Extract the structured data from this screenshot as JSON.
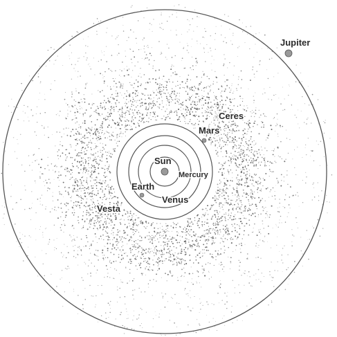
{
  "bodies": {
    "sun": "Sun",
    "mercury": "Mercury",
    "venus": "Venus",
    "earth": "Earth",
    "mars": "Mars",
    "jupiter": "Jupiter",
    "ceres": "Ceres",
    "vesta": "Vesta"
  },
  "colors": {
    "orbit": "#555555",
    "asteroid": "#6b6b6b",
    "planet": "#9a9a9a",
    "label": "#2b2b2b"
  }
}
